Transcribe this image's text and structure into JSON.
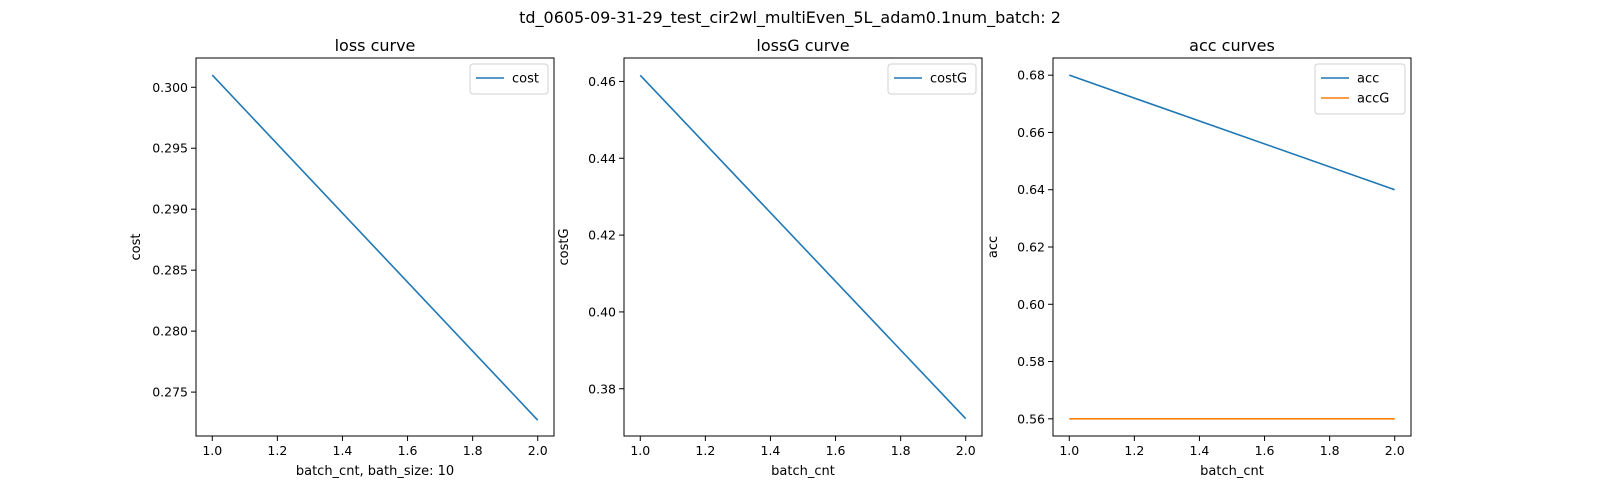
{
  "figure": {
    "suptitle": "td_0605-09-31-29_test_cir2wl_multiEven_5L_adam0.1num_batch: 2"
  },
  "chart_data": [
    {
      "type": "line",
      "title": "loss curve",
      "xlabel": "batch_cnt, bath_size: 10",
      "ylabel": "cost",
      "xlim": [
        0.95,
        2.05
      ],
      "ylim": [
        0.2714,
        0.3024
      ],
      "xticks": [
        1.0,
        1.2,
        1.4,
        1.6,
        1.8,
        2.0
      ],
      "xtick_labels": [
        "1.0",
        "1.2",
        "1.4",
        "1.6",
        "1.8",
        "2.0"
      ],
      "yticks": [
        0.275,
        0.28,
        0.285,
        0.29,
        0.295,
        0.3
      ],
      "ytick_labels": [
        "0.275",
        "0.280",
        "0.285",
        "0.290",
        "0.295",
        "0.300"
      ],
      "legend_loc": "top-right",
      "grid": false,
      "series": [
        {
          "name": "cost",
          "x": [
            1,
            2
          ],
          "y": [
            0.301,
            0.2727
          ],
          "color": "#1f77b4"
        }
      ]
    },
    {
      "type": "line",
      "title": "lossG curve",
      "xlabel": "batch_cnt",
      "ylabel": "costG",
      "xlim": [
        0.95,
        2.05
      ],
      "ylim": [
        0.3677,
        0.4661
      ],
      "xticks": [
        1.0,
        1.2,
        1.4,
        1.6,
        1.8,
        2.0
      ],
      "xtick_labels": [
        "1.0",
        "1.2",
        "1.4",
        "1.6",
        "1.8",
        "2.0"
      ],
      "yticks": [
        0.38,
        0.4,
        0.42,
        0.44,
        0.46
      ],
      "ytick_labels": [
        "0.38",
        "0.40",
        "0.42",
        "0.44",
        "0.46"
      ],
      "legend_loc": "top-right",
      "grid": false,
      "series": [
        {
          "name": "costG",
          "x": [
            1,
            2
          ],
          "y": [
            0.4616,
            0.3722
          ],
          "color": "#1f77b4"
        }
      ]
    },
    {
      "type": "line",
      "title": "acc curves",
      "xlabel": "batch_cnt",
      "ylabel": "acc",
      "xlim": [
        0.95,
        2.05
      ],
      "ylim": [
        0.554,
        0.686
      ],
      "xticks": [
        1.0,
        1.2,
        1.4,
        1.6,
        1.8,
        2.0
      ],
      "xtick_labels": [
        "1.0",
        "1.2",
        "1.4",
        "1.6",
        "1.8",
        "2.0"
      ],
      "yticks": [
        0.56,
        0.58,
        0.6,
        0.62,
        0.64,
        0.66,
        0.68
      ],
      "ytick_labels": [
        "0.56",
        "0.58",
        "0.60",
        "0.62",
        "0.64",
        "0.66",
        "0.68"
      ],
      "legend_loc": "top-right",
      "grid": false,
      "series": [
        {
          "name": "acc",
          "x": [
            1,
            2
          ],
          "y": [
            0.68,
            0.64
          ],
          "color": "#1f77b4"
        },
        {
          "name": "accG",
          "x": [
            1,
            2
          ],
          "y": [
            0.56,
            0.56
          ],
          "color": "#ff7f0e"
        }
      ]
    }
  ]
}
